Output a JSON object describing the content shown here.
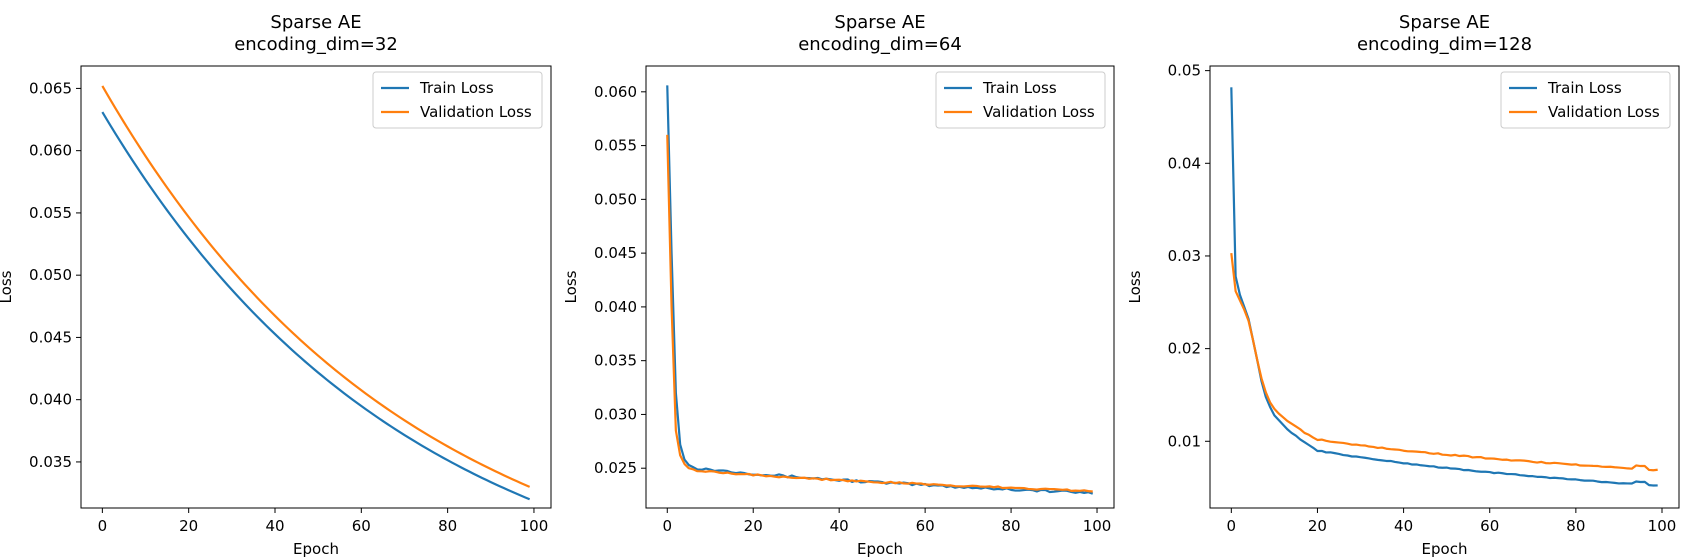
{
  "chart_data": [
    {
      "type": "line",
      "title": "Sparse AE",
      "subtitle": "encoding_dim=32",
      "xlabel": "Epoch",
      "ylabel": "Loss",
      "xlim": [
        -4.95,
        103.95
      ],
      "ylim": [
        0.0313,
        0.0668
      ],
      "xticks": [
        0,
        20,
        40,
        60,
        80,
        100
      ],
      "yticks": [
        0.035,
        0.04,
        0.045,
        0.05,
        0.055,
        0.06,
        0.065
      ],
      "ytick_labels": [
        "0.035",
        "0.040",
        "0.045",
        "0.050",
        "0.055",
        "0.060",
        "0.065"
      ],
      "legend": "upper right",
      "grid": false,
      "series": [
        {
          "name": "Train Loss",
          "color": "#1f77b4",
          "curve": "exp",
          "start": 0.0631,
          "end": 0.032,
          "k": 1.4,
          "noise": 0,
          "n": 100
        },
        {
          "name": "Validation Loss",
          "color": "#ff7f0e",
          "curve": "exp",
          "start": 0.0652,
          "end": 0.033,
          "k": 1.4,
          "noise": 0,
          "n": 100
        }
      ]
    },
    {
      "type": "line",
      "title": "Sparse AE",
      "subtitle": "encoding_dim=64",
      "xlabel": "Epoch",
      "ylabel": "Loss",
      "xlim": [
        -4.95,
        103.95
      ],
      "ylim": [
        0.0213,
        0.0624
      ],
      "xticks": [
        0,
        20,
        40,
        60,
        80,
        100
      ],
      "yticks": [
        0.025,
        0.03,
        0.035,
        0.04,
        0.045,
        0.05,
        0.055,
        0.06
      ],
      "ytick_labels": [
        "0.025",
        "0.030",
        "0.035",
        "0.040",
        "0.045",
        "0.050",
        "0.055",
        "0.060"
      ],
      "legend": "upper right",
      "grid": false,
      "series": [
        {
          "name": "Train Loss",
          "color": "#1f77b4",
          "curve": "points",
          "noise": 0.00012,
          "n": 100,
          "head": [
            0.0606,
            0.045,
            0.032,
            0.0272,
            0.0258,
            0.0253,
            0.0251
          ],
          "tail_from": 0.025,
          "tail_to": 0.0227
        },
        {
          "name": "Validation Loss",
          "color": "#ff7f0e",
          "curve": "points",
          "noise": 8e-05,
          "n": 100,
          "head": [
            0.056,
            0.04,
            0.0285,
            0.0262,
            0.0254,
            0.025,
            0.0249
          ],
          "tail_from": 0.0248,
          "tail_to": 0.0229
        }
      ]
    },
    {
      "type": "line",
      "title": "Sparse AE",
      "subtitle": "encoding_dim=128",
      "xlabel": "Epoch",
      "ylabel": "Loss",
      "xlim": [
        -4.95,
        103.95
      ],
      "ylim": [
        0.0028,
        0.0505
      ],
      "xticks": [
        0,
        20,
        40,
        60,
        80,
        100
      ],
      "yticks": [
        0.01,
        0.02,
        0.03,
        0.04,
        0.05
      ],
      "ytick_labels": [
        "0.01",
        "0.02",
        "0.03",
        "0.04",
        "0.05"
      ],
      "legend": "upper right",
      "grid": false,
      "series": [
        {
          "name": "Train Loss",
          "color": "#1f77b4",
          "curve": "points",
          "noise": 5e-05,
          "n": 100,
          "head": [
            0.0482,
            0.0278,
            0.0258,
            0.0245,
            0.0232,
            0.021,
            0.0188,
            0.0165,
            0.0148,
            0.0137,
            0.0128,
            0.0123,
            0.0118,
            0.0113,
            0.0109,
            0.0106,
            0.0102,
            0.0099,
            0.0096,
            0.0093
          ],
          "tail_from": 0.009,
          "tail_to": 0.0052,
          "bump": [
            95,
            0.0003
          ]
        },
        {
          "name": "Validation Loss",
          "color": "#ff7f0e",
          "curve": "points",
          "noise": 6e-05,
          "n": 100,
          "head": [
            0.0303,
            0.0262,
            0.0252,
            0.0242,
            0.023,
            0.021,
            0.0188,
            0.0168,
            0.0153,
            0.0142,
            0.0135,
            0.013,
            0.0126,
            0.0122,
            0.0119,
            0.0116,
            0.0113,
            0.0109,
            0.0107,
            0.0104
          ],
          "tail_from": 0.0102,
          "tail_to": 0.0069,
          "bump": [
            95,
            0.0003
          ]
        }
      ]
    }
  ]
}
